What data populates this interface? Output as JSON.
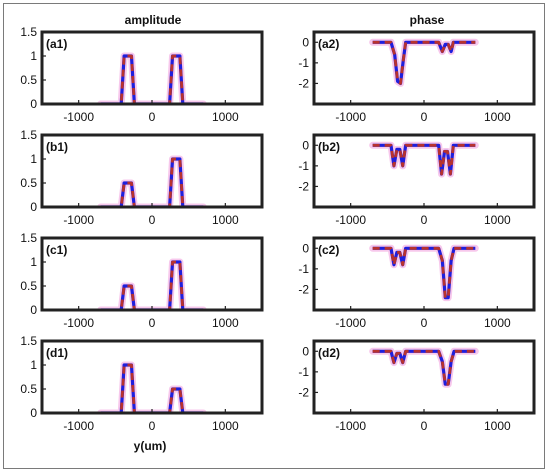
{
  "figure": {
    "column_titles": [
      "amplitude",
      "phase"
    ],
    "xlabel": "y(um)"
  },
  "colors": {
    "blue": "#1f1fdd",
    "red": "#b8322e",
    "pink": "#f4b6e6",
    "axis": "#222222"
  },
  "chart_data": [
    {
      "id": "a1",
      "panel_label": "(a1)",
      "type": "line",
      "column": "amplitude",
      "xlim": [
        -1500,
        1500
      ],
      "ylim": [
        0,
        1.5
      ],
      "xticks": [
        -1000,
        0,
        1000
      ],
      "yticks": [
        0,
        0.5,
        1,
        1.5
      ],
      "xtick_labels": [
        "-1000",
        "0",
        "1000"
      ],
      "ytick_labels": [
        "0",
        "0.5",
        "1",
        "1.5"
      ],
      "series": [
        {
          "color": "blue",
          "style": "solid",
          "x": [
            -700,
            -420,
            -400,
            -380,
            -280,
            -260,
            -240,
            240,
            260,
            280,
            380,
            400,
            420,
            700
          ],
          "y": [
            0,
            0,
            0.5,
            1,
            1,
            0.5,
            0,
            0,
            0.5,
            1,
            1,
            0.5,
            0,
            0
          ]
        },
        {
          "color": "red",
          "style": "dashed",
          "x": [
            -700,
            -420,
            -400,
            -380,
            -280,
            -260,
            -240,
            240,
            260,
            280,
            380,
            400,
            420,
            700
          ],
          "y": [
            0,
            0,
            0.5,
            1,
            1,
            0.5,
            0,
            0,
            0.5,
            1,
            1,
            0.5,
            0,
            0
          ]
        }
      ]
    },
    {
      "id": "a2",
      "panel_label": "(a2)",
      "type": "line",
      "column": "phase",
      "xlim": [
        -1500,
        1500
      ],
      "ylim": [
        -3,
        0.5
      ],
      "xticks": [
        -1000,
        0,
        1000
      ],
      "yticks": [
        -2,
        -1,
        0
      ],
      "xtick_labels": [
        "-1000",
        "0",
        "1000"
      ],
      "ytick_labels": [
        "-2",
        "-1",
        "0"
      ],
      "series": [
        {
          "color": "blue",
          "style": "solid",
          "x": [
            -700,
            -450,
            -400,
            -360,
            -320,
            -280,
            -250,
            200,
            250,
            290,
            330,
            370,
            400,
            700
          ],
          "y": [
            0,
            0,
            -0.6,
            -1.9,
            -2.0,
            -0.8,
            0,
            0,
            -0.45,
            -0.1,
            -0.1,
            -0.45,
            0,
            0
          ]
        },
        {
          "color": "red",
          "style": "dashed",
          "x": [
            -700,
            -450,
            -400,
            -360,
            -320,
            -280,
            -250,
            200,
            250,
            290,
            330,
            370,
            400,
            700
          ],
          "y": [
            0,
            0,
            -0.6,
            -1.9,
            -2.0,
            -0.8,
            0,
            0,
            -0.45,
            -0.1,
            -0.1,
            -0.45,
            0,
            0
          ]
        }
      ]
    },
    {
      "id": "b1",
      "panel_label": "(b1)",
      "type": "line",
      "column": "amplitude",
      "xlim": [
        -1500,
        1500
      ],
      "ylim": [
        0,
        1.5
      ],
      "xticks": [
        -1000,
        0,
        1000
      ],
      "yticks": [
        0,
        0.5,
        1,
        1.5
      ],
      "xtick_labels": [
        "-1000",
        "0",
        "1000"
      ],
      "ytick_labels": [
        "0",
        "0.5",
        "1",
        "1.5"
      ],
      "series": [
        {
          "color": "blue",
          "style": "solid",
          "x": [
            -700,
            -420,
            -400,
            -380,
            -280,
            -260,
            -240,
            240,
            260,
            280,
            380,
            400,
            420,
            700
          ],
          "y": [
            0,
            0,
            0.25,
            0.5,
            0.5,
            0.25,
            0,
            0,
            0.5,
            1,
            1,
            0.5,
            0,
            0
          ]
        },
        {
          "color": "red",
          "style": "dashed",
          "x": [
            -700,
            -420,
            -400,
            -380,
            -280,
            -260,
            -240,
            240,
            260,
            280,
            380,
            400,
            420,
            700
          ],
          "y": [
            0,
            0,
            0.25,
            0.5,
            0.5,
            0.25,
            0,
            0,
            0.5,
            1,
            1,
            0.5,
            0,
            0
          ]
        }
      ]
    },
    {
      "id": "b2",
      "panel_label": "(b2)",
      "type": "line",
      "column": "phase",
      "xlim": [
        -1500,
        1500
      ],
      "ylim": [
        -3,
        0.5
      ],
      "xticks": [
        -1000,
        0,
        1000
      ],
      "yticks": [
        -2,
        -1,
        0
      ],
      "xtick_labels": [
        "-1000",
        "0",
        "1000"
      ],
      "ytick_labels": [
        "-2",
        "-1",
        "0"
      ],
      "series": [
        {
          "color": "blue",
          "style": "solid",
          "x": [
            -700,
            -450,
            -410,
            -370,
            -330,
            -290,
            -250,
            200,
            240,
            280,
            320,
            360,
            400,
            700
          ],
          "y": [
            0,
            0,
            -1.0,
            -0.2,
            -0.2,
            -1.0,
            0,
            0,
            -1.4,
            -0.3,
            -0.3,
            -1.4,
            0,
            0
          ]
        },
        {
          "color": "red",
          "style": "dashed",
          "x": [
            -700,
            -450,
            -410,
            -370,
            -330,
            -290,
            -250,
            200,
            240,
            280,
            320,
            360,
            400,
            700
          ],
          "y": [
            0,
            0,
            -1.0,
            -0.2,
            -0.2,
            -1.0,
            0,
            0,
            -1.4,
            -0.3,
            -0.3,
            -1.4,
            0,
            0
          ]
        }
      ]
    },
    {
      "id": "c1",
      "panel_label": "(c1)",
      "type": "line",
      "column": "amplitude",
      "xlim": [
        -1500,
        1500
      ],
      "ylim": [
        0,
        1.5
      ],
      "xticks": [
        -1000,
        0,
        1000
      ],
      "yticks": [
        0,
        0.5,
        1,
        1.5
      ],
      "xtick_labels": [
        "-1000",
        "0",
        "1000"
      ],
      "ytick_labels": [
        "0",
        "0.5",
        "1",
        "1.5"
      ],
      "series": [
        {
          "color": "blue",
          "style": "solid",
          "x": [
            -700,
            -420,
            -400,
            -380,
            -280,
            -260,
            -240,
            240,
            260,
            280,
            380,
            400,
            420,
            700
          ],
          "y": [
            0,
            0,
            0.25,
            0.5,
            0.5,
            0.25,
            0,
            0,
            0.5,
            1,
            1,
            0.5,
            0,
            0
          ]
        },
        {
          "color": "red",
          "style": "dashed",
          "x": [
            -700,
            -420,
            -400,
            -380,
            -280,
            -260,
            -240,
            240,
            260,
            280,
            380,
            400,
            420,
            700
          ],
          "y": [
            0,
            0,
            0.25,
            0.5,
            0.5,
            0.25,
            0,
            0,
            0.5,
            1,
            1,
            0.5,
            0,
            0
          ]
        }
      ]
    },
    {
      "id": "c2",
      "panel_label": "(c2)",
      "type": "line",
      "column": "phase",
      "xlim": [
        -1500,
        1500
      ],
      "ylim": [
        -3,
        0.5
      ],
      "xticks": [
        -1000,
        0,
        1000
      ],
      "yticks": [
        -2,
        -1,
        0
      ],
      "xtick_labels": [
        "-1000",
        "0",
        "1000"
      ],
      "ytick_labels": [
        "-2",
        "-1",
        "0"
      ],
      "series": [
        {
          "color": "blue",
          "style": "solid",
          "x": [
            -700,
            -450,
            -410,
            -370,
            -330,
            -290,
            -250,
            200,
            250,
            290,
            330,
            370,
            410,
            700
          ],
          "y": [
            0,
            0,
            -0.8,
            -0.2,
            -0.2,
            -0.8,
            0,
            0,
            -0.6,
            -2.4,
            -2.4,
            -0.6,
            0,
            0
          ]
        },
        {
          "color": "red",
          "style": "dashed",
          "x": [
            -700,
            -450,
            -410,
            -370,
            -330,
            -290,
            -250,
            200,
            250,
            290,
            330,
            370,
            410,
            700
          ],
          "y": [
            0,
            0,
            -0.8,
            -0.2,
            -0.2,
            -0.8,
            0,
            0,
            -0.6,
            -2.4,
            -2.4,
            -0.6,
            0,
            0
          ]
        }
      ]
    },
    {
      "id": "d1",
      "panel_label": "(d1)",
      "type": "line",
      "column": "amplitude",
      "xlim": [
        -1500,
        1500
      ],
      "ylim": [
        0,
        1.5
      ],
      "xticks": [
        -1000,
        0,
        1000
      ],
      "yticks": [
        0,
        0.5,
        1,
        1.5
      ],
      "xtick_labels": [
        "-1000",
        "0",
        "1000"
      ],
      "ytick_labels": [
        "0",
        "0.5",
        "1",
        "1.5"
      ],
      "series": [
        {
          "color": "blue",
          "style": "solid",
          "x": [
            -700,
            -420,
            -400,
            -380,
            -280,
            -260,
            -240,
            240,
            260,
            280,
            380,
            400,
            420,
            700
          ],
          "y": [
            0,
            0,
            0.5,
            1,
            1,
            0.5,
            0,
            0,
            0.25,
            0.5,
            0.5,
            0.25,
            0,
            0
          ]
        },
        {
          "color": "red",
          "style": "dashed",
          "x": [
            -700,
            -420,
            -400,
            -380,
            -280,
            -260,
            -240,
            240,
            260,
            280,
            380,
            400,
            420,
            700
          ],
          "y": [
            0,
            0,
            0.5,
            1,
            1,
            0.5,
            0,
            0,
            0.25,
            0.5,
            0.5,
            0.25,
            0,
            0
          ]
        }
      ]
    },
    {
      "id": "d2",
      "panel_label": "(d2)",
      "type": "line",
      "column": "phase",
      "xlim": [
        -1500,
        1500
      ],
      "ylim": [
        -3,
        0.5
      ],
      "xticks": [
        -1000,
        0,
        1000
      ],
      "yticks": [
        -2,
        -1,
        0
      ],
      "xtick_labels": [
        "-1000",
        "0",
        "1000"
      ],
      "ytick_labels": [
        "-2",
        "-1",
        "0"
      ],
      "series": [
        {
          "color": "blue",
          "style": "solid",
          "x": [
            -700,
            -450,
            -410,
            -370,
            -330,
            -290,
            -250,
            200,
            250,
            290,
            330,
            370,
            410,
            700
          ],
          "y": [
            0,
            0,
            -0.55,
            -0.1,
            -0.1,
            -0.55,
            0,
            0,
            -0.5,
            -1.6,
            -1.6,
            -0.5,
            0,
            0
          ]
        },
        {
          "color": "red",
          "style": "dashed",
          "x": [
            -700,
            -450,
            -410,
            -370,
            -330,
            -290,
            -250,
            200,
            250,
            290,
            330,
            370,
            410,
            700
          ],
          "y": [
            0,
            0,
            -0.55,
            -0.1,
            -0.1,
            -0.55,
            0,
            0,
            -0.5,
            -1.6,
            -1.6,
            -0.5,
            0,
            0
          ]
        }
      ]
    }
  ]
}
